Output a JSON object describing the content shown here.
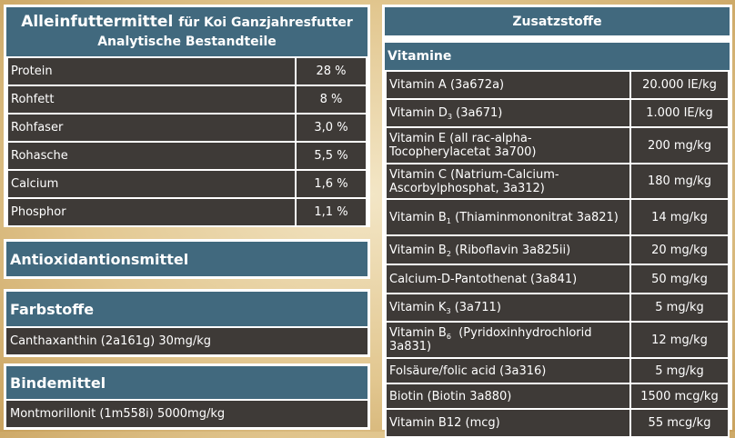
{
  "analytics": {
    "title": "Alleinfuttermittel",
    "title_suffix": "für Koi Ganzjahresfutter",
    "subtitle": "Analytische Bestandteile",
    "rows": [
      {
        "name": "Protein",
        "value": "28 %"
      },
      {
        "name": "Rohfett",
        "value": "8 %"
      },
      {
        "name": "Rohfaser",
        "value": "3,0 %"
      },
      {
        "name": "Rohasche",
        "value": "5,5 %"
      },
      {
        "name": "Calcium",
        "value": "1,6 %"
      },
      {
        "name": "Phosphor",
        "value": "1,1 %"
      }
    ]
  },
  "antioxidants": {
    "title": "Antioxidantionsmittel"
  },
  "colorants": {
    "title": "Farbstoffe",
    "text": "Canthaxanthin (2a161g) 30mg/kg"
  },
  "binders": {
    "title": "Bindemittel",
    "text": "Montmorillonit (1m558i) 5000mg/kg"
  },
  "additives": {
    "title": "Zusatzstoffe",
    "section": "Vitamine",
    "rows": [
      {
        "name": "Vitamin A (3a672a)",
        "value": "20.000 IE/kg"
      },
      {
        "pre": "Vitamin D",
        "sub": "3",
        "post": " (3a671)",
        "value": "1.000 IE/kg"
      },
      {
        "name": "Vitamin E (all rac-alpha-Tocopherylacetat 3a700)",
        "value": "200 mg/kg"
      },
      {
        "name": "Vitamin C (Natrium-Calcium-Ascorbylphosphat, 3a312)",
        "value": "180 mg/kg"
      },
      {
        "pre": "Vitamin B",
        "sub": "1",
        "post": " (Thiaminmononitrat 3a821)",
        "value": "14 mg/kg"
      },
      {
        "pre": "Vitamin B",
        "sub": "2",
        "post": " (Riboflavin 3a825ii)",
        "value": "20 mg/kg"
      },
      {
        "name": "Calcium-D-Pantothenat (3a841)",
        "value": "50 mg/kg"
      },
      {
        "pre": "Vitamin K",
        "sub": "3",
        "post": " (3a711)",
        "value": "5 mg/kg"
      },
      {
        "pre": "Vitamin B",
        "sub": "6",
        "post": "  (Pyridoxinhydrochlorid 3a831)",
        "value": "12 mg/kg"
      },
      {
        "name": "Folsäure/folic acid (3a316)",
        "value": "5 mg/kg"
      },
      {
        "name": "Biotin (Biotin 3a880)",
        "value": "1500 mcg/kg"
      },
      {
        "name": "Vitamin B12 (mcg)",
        "value": "55 mcg/kg"
      }
    ]
  }
}
